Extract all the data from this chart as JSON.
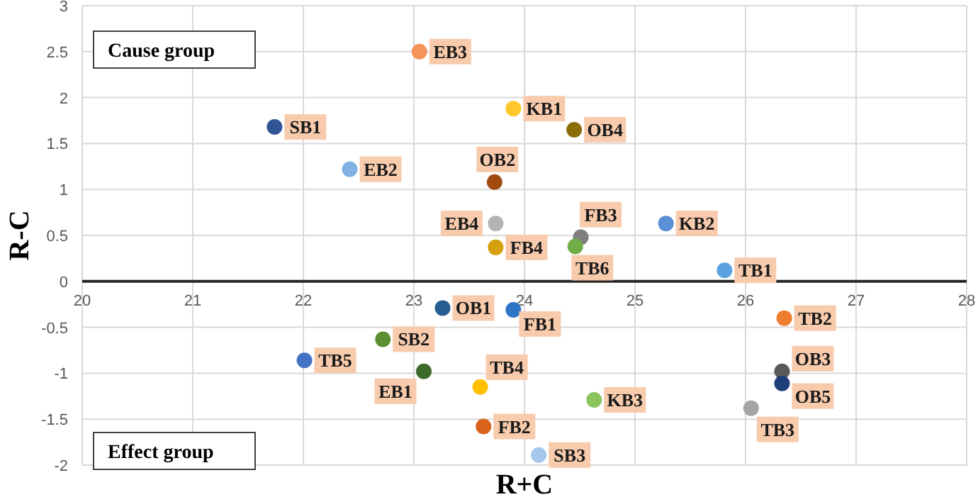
{
  "chart_data": {
    "type": "scatter",
    "xlabel": "R+C",
    "ylabel": "R-C",
    "xlim": [
      20,
      28
    ],
    "ylim": [
      -2,
      3
    ],
    "xticks": [
      20,
      21,
      22,
      23,
      24,
      25,
      26,
      27,
      28
    ],
    "yticks": [
      -2,
      -1.5,
      -1,
      -0.5,
      0,
      0.5,
      1,
      1.5,
      2,
      2.5,
      3
    ],
    "grid": true,
    "marker": "circle",
    "annotations": [
      "Cause group",
      "Effect group"
    ],
    "series": [
      {
        "name": "EB3",
        "color": "#f4945a",
        "x": [
          23.05
        ],
        "values": [
          2.5
        ]
      },
      {
        "name": "SB1",
        "color": "#2f5597",
        "x": [
          21.74
        ],
        "values": [
          1.68
        ]
      },
      {
        "name": "EB2",
        "color": "#7fb1e3",
        "x": [
          22.42
        ],
        "values": [
          1.22
        ]
      },
      {
        "name": "KB1",
        "color": "#ffc72c",
        "x": [
          23.9
        ],
        "values": [
          1.88
        ]
      },
      {
        "name": "OB4",
        "color": "#8c6d0a",
        "x": [
          24.45
        ],
        "values": [
          1.65
        ]
      },
      {
        "name": "OB2",
        "color": "#a04a10",
        "x": [
          23.73
        ],
        "values": [
          1.08
        ]
      },
      {
        "name": "EB4",
        "color": "#b4b4b4",
        "x": [
          23.74
        ],
        "values": [
          0.63
        ]
      },
      {
        "name": "FB4",
        "color": "#d4a00c",
        "x": [
          23.74
        ],
        "values": [
          0.37
        ]
      },
      {
        "name": "FB3",
        "color": "#7f7f7f",
        "x": [
          24.51
        ],
        "values": [
          0.48
        ]
      },
      {
        "name": "TB6",
        "color": "#70ad47",
        "x": [
          24.46
        ],
        "values": [
          0.38
        ]
      },
      {
        "name": "KB2",
        "color": "#5b8fd6",
        "x": [
          25.28
        ],
        "values": [
          0.63
        ]
      },
      {
        "name": "TB1",
        "color": "#5ba3e0",
        "x": [
          25.81
        ],
        "values": [
          0.12
        ]
      },
      {
        "name": "OB1",
        "color": "#255e91",
        "x": [
          23.26
        ],
        "values": [
          -0.29
        ]
      },
      {
        "name": "FB1",
        "color": "#2e75c6",
        "x": [
          23.9
        ],
        "values": [
          -0.31
        ]
      },
      {
        "name": "TB2",
        "color": "#ed7d31",
        "x": [
          26.35
        ],
        "values": [
          -0.4
        ]
      },
      {
        "name": "SB2",
        "color": "#5b8f32",
        "x": [
          22.72
        ],
        "values": [
          -0.63
        ]
      },
      {
        "name": "TB5",
        "color": "#4472c4",
        "x": [
          22.01
        ],
        "values": [
          -0.86
        ]
      },
      {
        "name": "EB1",
        "color": "#3d6b2a",
        "x": [
          23.09
        ],
        "values": [
          -0.98
        ]
      },
      {
        "name": "TB4",
        "color": "#ffc000",
        "x": [
          23.6
        ],
        "values": [
          -1.15
        ]
      },
      {
        "name": "OB3",
        "color": "#5a5a5a",
        "x": [
          26.33
        ],
        "values": [
          -0.98
        ]
      },
      {
        "name": "OB5",
        "color": "#203f7a",
        "x": [
          26.33
        ],
        "values": [
          -1.11
        ]
      },
      {
        "name": "KB3",
        "color": "#8cc45e",
        "x": [
          24.63
        ],
        "values": [
          -1.29
        ]
      },
      {
        "name": "TB3",
        "color": "#a5a5a5",
        "x": [
          26.05
        ],
        "values": [
          -1.38
        ]
      },
      {
        "name": "FB2",
        "color": "#d9621c",
        "x": [
          23.63
        ],
        "values": [
          -1.58
        ]
      },
      {
        "name": "SB3",
        "color": "#a6c8ec",
        "x": [
          24.13
        ],
        "values": [
          -1.89
        ]
      }
    ]
  }
}
